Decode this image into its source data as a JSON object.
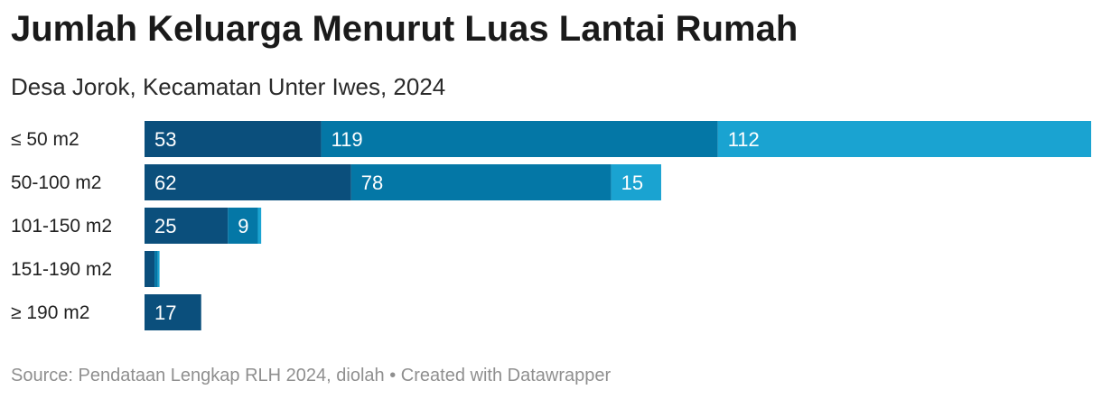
{
  "chart_data": {
    "type": "bar",
    "orientation": "horizontal",
    "stacked": true,
    "title": "Jumlah Keluarga Menurut Luas Lantai Rumah",
    "subtitle": "Desa Jorok, Kecamatan Unter Iwes, 2024",
    "categories": [
      "≤ 50 m2",
      "50-100 m2",
      "101-150 m2",
      "151-190 m2",
      "≥ 190 m2"
    ],
    "series": [
      {
        "color": "#0b4f7c",
        "values": [
          53,
          62,
          25,
          3,
          17
        ]
      },
      {
        "color": "#0477a6",
        "values": [
          119,
          78,
          9,
          1,
          0
        ]
      },
      {
        "color": "#1aa3d1",
        "values": [
          112,
          15,
          1,
          0.5,
          0
        ]
      }
    ],
    "xlim": [
      0,
      284
    ],
    "grid": false,
    "legend": "none"
  },
  "footer": {
    "source": "Source: Pendataan Lengkap RLH 2024, diolah",
    "separator": "•",
    "credit": "Created with Datawrapper"
  }
}
